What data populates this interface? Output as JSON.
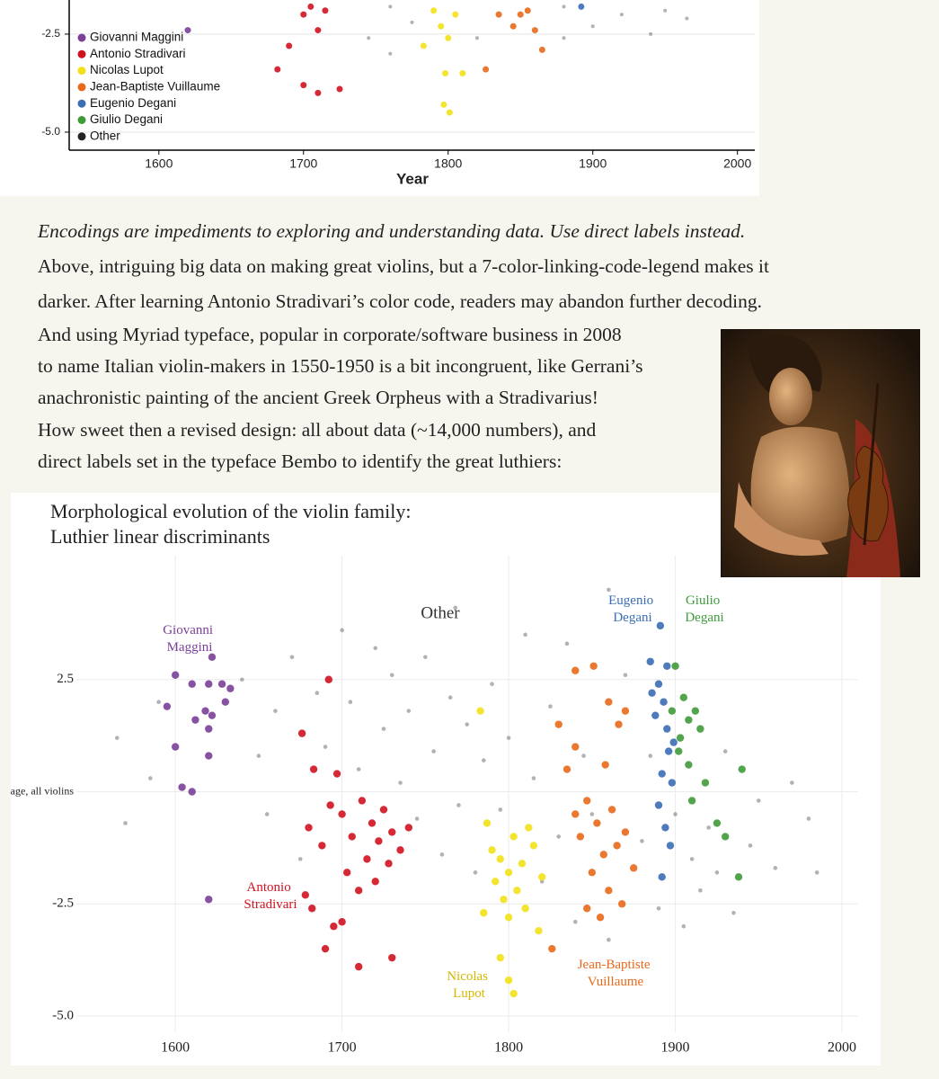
{
  "chart_data": [
    {
      "type": "scatter",
      "xlabel": "Year",
      "legend": "upper left",
      "grid": true,
      "xlim": [
        1538,
        2012
      ],
      "ylim": [
        -5.46,
        -1.63
      ],
      "xticks": [
        1600,
        1700,
        1800,
        1900,
        2000
      ],
      "yticks": [
        -2.5,
        {
          "value": -5,
          "label": "-5.0"
        }
      ],
      "series": [
        {
          "name": "Giovanni Maggini",
          "color": "#7b3f98",
          "x": [
            1620
          ],
          "values": [
            -2.4
          ]
        },
        {
          "name": "Antonio Stradivari",
          "color": "#d0121f",
          "x": [
            1700,
            1710,
            1715,
            1690,
            1682,
            1700,
            1710,
            1725,
            1705
          ],
          "values": [
            -2.0,
            -2.4,
            -1.9,
            -2.8,
            -3.4,
            -3.8,
            -4.0,
            -3.9,
            -1.8
          ]
        },
        {
          "name": "Nicolas Lupot",
          "color": "#f2e11a",
          "x": [
            1790,
            1795,
            1800,
            1805,
            1798,
            1810,
            1797,
            1801,
            1783
          ],
          "values": [
            -1.9,
            -2.3,
            -2.6,
            -2.0,
            -3.5,
            -3.5,
            -4.3,
            -4.5,
            -2.8
          ]
        },
        {
          "name": "Jean-Baptiste Vuillaume",
          "color": "#e8691b",
          "x": [
            1835,
            1845,
            1855,
            1860,
            1826,
            1865,
            1850
          ],
          "values": [
            -2.0,
            -2.3,
            -1.9,
            -2.4,
            -3.4,
            -2.9,
            -2.0
          ]
        },
        {
          "name": "Eugenio Degani",
          "color": "#3a6db5",
          "x": [
            1892
          ],
          "values": [
            -1.8
          ]
        },
        {
          "name": "Giulio Degani",
          "color": "#3f9b3a",
          "x": [],
          "values": []
        },
        {
          "name": "Other",
          "color": "#222222",
          "x": [
            1760,
            1775,
            1820,
            1880,
            1900,
            1920,
            1940,
            1950,
            1745,
            1965,
            1880,
            1760
          ],
          "values": [
            -1.8,
            -2.2,
            -2.6,
            -1.8,
            -2.3,
            -2.0,
            -2.5,
            -1.9,
            -2.6,
            -2.1,
            -2.6,
            -3.0
          ]
        }
      ]
    },
    {
      "type": "scatter",
      "title": "Morphological evolution of the violin family:",
      "subtitle": "Luthier linear discriminants",
      "labels": "direct",
      "grid": true,
      "xlim": [
        1540.6,
        2009.7
      ],
      "ylim": [
        -5.36,
        5.26
      ],
      "xticks": [
        1600,
        1700,
        1800,
        1900,
        2000
      ],
      "yticks": [
        2.5,
        {
          "value": 0,
          "label": "Average, all violins"
        },
        -2.5,
        {
          "value": -5,
          "label": "-5.0"
        }
      ],
      "series": [
        {
          "name": "Giovanni Maggini",
          "color": "#7b3f98",
          "x": [
            1600,
            1600,
            1604,
            1610,
            1612,
            1618,
            1620,
            1620,
            1620,
            1622,
            1622,
            1630,
            1633,
            1620,
            1610,
            1595,
            1628
          ],
          "values": [
            2.6,
            1.0,
            0.1,
            2.4,
            1.6,
            1.8,
            2.4,
            1.4,
            0.8,
            3.0,
            1.7,
            2.0,
            2.3,
            -2.4,
            0.0,
            1.9,
            2.4
          ]
        },
        {
          "name": "Antonio Stradivari",
          "color": "#d0121f",
          "x": [
            1692,
            1676,
            1683,
            1680,
            1688,
            1693,
            1697,
            1700,
            1703,
            1706,
            1710,
            1712,
            1715,
            1718,
            1720,
            1722,
            1725,
            1728,
            1730,
            1735,
            1740,
            1700,
            1695,
            1690,
            1710,
            1730,
            1682,
            1678
          ],
          "values": [
            2.5,
            1.3,
            0.5,
            -0.8,
            -1.2,
            -0.3,
            0.4,
            -0.5,
            -1.8,
            -1.0,
            -2.2,
            -0.2,
            -1.5,
            -0.7,
            -2.0,
            -1.1,
            -0.4,
            -1.6,
            -0.9,
            -1.3,
            -0.8,
            -2.9,
            -3.0,
            -3.5,
            -3.9,
            -3.7,
            -2.6,
            -2.3
          ]
        },
        {
          "name": "Nicolas Lupot",
          "color": "#f2e11a",
          "x": [
            1783,
            1787,
            1790,
            1792,
            1795,
            1797,
            1800,
            1800,
            1803,
            1805,
            1808,
            1810,
            1812,
            1815,
            1818,
            1795,
            1800,
            1803,
            1785,
            1820
          ],
          "values": [
            1.8,
            -0.7,
            -1.3,
            -2.0,
            -1.5,
            -2.4,
            -1.8,
            -2.8,
            -1.0,
            -2.2,
            -1.6,
            -2.6,
            -0.8,
            -1.2,
            -3.1,
            -3.7,
            -4.2,
            -4.5,
            -2.7,
            -1.9
          ]
        },
        {
          "name": "Jean-Baptiste Vuillaume",
          "color": "#e8691b",
          "x": [
            1840,
            1851,
            1860,
            1866,
            1870,
            1830,
            1835,
            1840,
            1843,
            1847,
            1850,
            1853,
            1857,
            1860,
            1862,
            1865,
            1868,
            1870,
            1847,
            1855,
            1826,
            1875,
            1840,
            1858
          ],
          "values": [
            2.7,
            2.8,
            2.0,
            1.5,
            1.8,
            1.5,
            0.5,
            -0.5,
            -1.0,
            -0.2,
            -1.8,
            -0.7,
            -1.4,
            -2.2,
            -0.4,
            -1.2,
            -2.5,
            -0.9,
            -2.6,
            -2.8,
            -3.5,
            -1.7,
            1.0,
            0.6
          ]
        },
        {
          "name": "Eugenio Degani",
          "color": "#3a6db5",
          "x": [
            1891,
            1885,
            1890,
            1893,
            1895,
            1888,
            1896,
            1892,
            1898,
            1890,
            1894,
            1897,
            1892,
            1899,
            1886,
            1895
          ],
          "values": [
            3.7,
            2.9,
            2.4,
            2.0,
            1.4,
            1.7,
            0.9,
            0.4,
            0.2,
            -0.3,
            -0.8,
            -1.2,
            -1.9,
            1.1,
            2.2,
            2.8
          ]
        },
        {
          "name": "Giulio Degani",
          "color": "#3f9b3a",
          "x": [
            1900,
            1905,
            1908,
            1912,
            1903,
            1908,
            1915,
            1918,
            1925,
            1930,
            1940,
            1938,
            1910,
            1898,
            1902
          ],
          "values": [
            2.8,
            2.1,
            1.6,
            1.8,
            1.2,
            0.6,
            1.4,
            0.2,
            -0.7,
            -1.0,
            0.5,
            -1.9,
            -0.2,
            1.8,
            0.9
          ]
        },
        {
          "name": "Other",
          "color": "#333333",
          "x": [
            1565,
            1570,
            1585,
            1590,
            1640,
            1650,
            1655,
            1660,
            1670,
            1675,
            1685,
            1690,
            1700,
            1705,
            1710,
            1720,
            1725,
            1730,
            1735,
            1740,
            1745,
            1750,
            1755,
            1760,
            1765,
            1768,
            1770,
            1775,
            1780,
            1785,
            1790,
            1795,
            1800,
            1810,
            1815,
            1820,
            1825,
            1830,
            1835,
            1840,
            1845,
            1850,
            1860,
            1870,
            1880,
            1885,
            1890,
            1900,
            1905,
            1910,
            1915,
            1920,
            1925,
            1930,
            1935,
            1945,
            1950,
            1960,
            1970,
            1980,
            1985,
            1860
          ],
          "values": [
            1.2,
            -0.7,
            0.3,
            2.0,
            2.5,
            0.8,
            -0.5,
            1.8,
            3.0,
            -1.5,
            2.2,
            1.0,
            3.6,
            2.0,
            0.5,
            3.2,
            1.4,
            2.6,
            0.2,
            1.8,
            -0.6,
            3.0,
            0.9,
            -1.4,
            2.1,
            4.1,
            -0.3,
            1.5,
            -1.8,
            0.7,
            2.4,
            -0.4,
            1.2,
            3.5,
            0.3,
            -2.0,
            1.9,
            -1.0,
            3.3,
            -2.9,
            0.8,
            -0.5,
            -3.3,
            2.6,
            -1.1,
            0.8,
            -2.6,
            -0.5,
            -3.0,
            -1.5,
            -2.2,
            -0.8,
            -1.8,
            0.9,
            -2.7,
            -1.2,
            -0.2,
            -1.7,
            0.2,
            -0.6,
            -1.8,
            4.5
          ]
        }
      ]
    }
  ],
  "text": {
    "lead": "Encodings are impediments to exploring and understanding data. Use direct labels instead.",
    "lines": [
      "Above, intriguing big data on making great violins, but a 7-color-linking-code-legend makes it",
      "darker. After learning Antonio Stradivari’s color code, readers may abandon further decoding.",
      "And using Myriad typeface, popular in corporate/software business in 2008",
      "to name Italian violin-makers in 1550-1950 is a bit incongruent, like Gerrani’s",
      "anachronistic painting of the ancient Greek Orpheus with a Stradivarius!",
      "How sweet then a revised design: all about data (~14,000 numbers), and",
      "direct labels set in the typeface Bembo to identify the great luthiers:"
    ]
  }
}
